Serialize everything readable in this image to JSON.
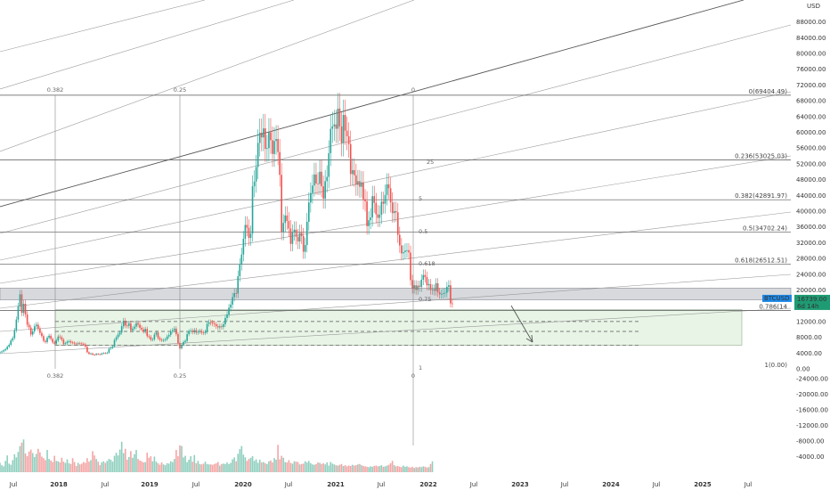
{
  "chart_data": {
    "type": "candlestick",
    "symbol_tag": "BTCUSD",
    "last_price": "16739.00",
    "countdown": "6d 14h",
    "currency": "USD",
    "price_axis_labels": [
      "88000.00",
      "84000.00",
      "80000.00",
      "76000.00",
      "72000.00",
      "68000.00",
      "64000.00",
      "60000.00",
      "56000.00",
      "52000.00",
      "48000.00",
      "44000.00",
      "40000.00",
      "36000.00",
      "32000.00",
      "28000.00",
      "24000.00",
      "20000.00",
      "12000.00",
      "8000.00",
      "4000.00",
      "0.00"
    ],
    "volume_axis_labels": [
      "-4000.00",
      "-8000.00",
      "-12000.00",
      "-16000.00",
      "-20000.00",
      "-24000.00"
    ],
    "time_axis_labels": [
      "Jul",
      "2018",
      "Jul",
      "2019",
      "Jul",
      "2020",
      "Jul",
      "2021",
      "Jul",
      "2022",
      "Jul",
      "2023",
      "Jul",
      "2024",
      "Jul",
      "2025",
      "Jul"
    ],
    "ylim": [
      0,
      92000
    ],
    "fib_retracement_levels": [
      {
        "ratio": "0",
        "price": 69404.49,
        "label": "0(69404.49)"
      },
      {
        "ratio": "0.236",
        "price": 53025.03,
        "label": "0.236(53025.03)"
      },
      {
        "ratio": "0.382",
        "price": 42891.97,
        "label": "0.382(42891.97)"
      },
      {
        "ratio": "0.5",
        "price": 34702.24,
        "label": "0.5(34702.24)"
      },
      {
        "ratio": "0.618",
        "price": 26512.51,
        "label": "0.618(26512.51)"
      },
      {
        "ratio": "0.786",
        "price": 14800,
        "label": "0.786(14"
      },
      {
        "ratio": "1",
        "price": 0,
        "label": "1(0.00)"
      }
    ],
    "vertical_fib_labels_top": [
      "0.382",
      "0.25",
      "0"
    ],
    "vertical_fib_labels_bottom": [
      "0.382",
      "0.25",
      "0"
    ],
    "fan_labels": [
      "0.5",
      "0.618",
      "0.75",
      "1",
      "25",
      "5"
    ],
    "support_zone": [
      17500,
      20500
    ],
    "target_box": [
      6000,
      15000
    ],
    "dashed_levels": [
      12000,
      9500,
      6000
    ],
    "weekly_closes": [
      4200,
      4400,
      4700,
      5000,
      5600,
      6100,
      7200,
      7800,
      9800,
      12500,
      15800,
      18900,
      14200,
      16500,
      13800,
      11200,
      10500,
      8700,
      9500,
      10800,
      11200,
      10200,
      9100,
      8300,
      7100,
      6800,
      7900,
      8400,
      7600,
      6700,
      6400,
      7200,
      8200,
      8000,
      7400,
      6300,
      6500,
      6900,
      7000,
      6700,
      6600,
      6400,
      6300,
      6500,
      6450,
      6350,
      6200,
      5600,
      4200,
      3800,
      3900,
      3600,
      3550,
      3800,
      3700,
      3650,
      3900,
      4000,
      3950,
      4100,
      5100,
      5300,
      5700,
      7300,
      8000,
      8700,
      9200,
      10800,
      12200,
      11000,
      10900,
      11500,
      9800,
      10200,
      10700,
      11600,
      11200,
      10400,
      10000,
      9500,
      10100,
      8300,
      8100,
      7400,
      7500,
      8700,
      9200,
      7800,
      7400,
      7200,
      7300,
      7500,
      8200,
      8600,
      9500,
      9800,
      10200,
      8800,
      6500,
      5200,
      6100,
      6800,
      7100,
      8800,
      9500,
      9700,
      9300,
      9800,
      9200,
      9400,
      9600,
      9200,
      9100,
      9400,
      11400,
      11800,
      11700,
      11500,
      11300,
      10800,
      10500,
      10800,
      10600,
      11300,
      12900,
      13800,
      15500,
      16300,
      18200,
      19200,
      19100,
      23500,
      26500,
      29000,
      33000,
      36500,
      35800,
      33200,
      34300,
      46300,
      47500,
      51200,
      57300,
      59900,
      58700,
      61000,
      55800,
      56000,
      60000,
      58000,
      54500,
      57800,
      58300,
      55000,
      49200,
      34700,
      37000,
      38900,
      37500,
      35600,
      31700,
      34600,
      35300,
      33500,
      32300,
      34500,
      33700,
      29700,
      31400,
      37300,
      42200,
      44600,
      46500,
      49300,
      47000,
      46900,
      50000,
      46300,
      43200,
      47600,
      48700,
      54700,
      60900,
      61500,
      62000,
      60900,
      66000,
      61500,
      57300,
      64400,
      60400,
      59000,
      57000,
      49400,
      50400,
      49100,
      46700,
      47600,
      46200,
      47300,
      43000,
      42500,
      36200,
      37700,
      38400,
      43800,
      42100,
      39200,
      38300,
      39100,
      42400,
      41900,
      44100,
      46800,
      45800,
      42200,
      39500,
      40000,
      39700,
      34000,
      31300,
      29300,
      29600,
      30000,
      30100,
      29500,
      22500,
      20300,
      21200,
      20000,
      21100,
      20800,
      22600,
      23800,
      23300,
      21200,
      21500,
      20000,
      20200,
      19800,
      21700,
      19400,
      18900,
      19000,
      19200,
      19300,
      20800,
      21200,
      16600,
      16500
    ],
    "volume_bars": [
      2400,
      1800,
      1500,
      2900,
      4300,
      2200,
      1900,
      3100,
      4600,
      3800,
      5200,
      6700,
      7600,
      8400,
      4800,
      4100,
      5300,
      5800,
      4900,
      3900,
      4700,
      6000,
      5100,
      4000,
      3600,
      3100,
      5700,
      3400,
      3000,
      2600,
      4200,
      2900,
      2800,
      2500,
      3700,
      2700,
      2400,
      3300,
      2300,
      2100,
      3600,
      2600,
      1600,
      2400,
      2000,
      2200,
      2600,
      2400,
      3600,
      2700,
      3100,
      5400,
      4300,
      3400,
      2700,
      1800,
      2500,
      2800,
      2400,
      2900,
      3400,
      3200,
      2700,
      4200,
      5000,
      4300,
      5800,
      7800,
      4900,
      6000,
      3200,
      3900,
      5400,
      3700,
      4600,
      5700,
      3400,
      3000,
      2800,
      2500,
      2600,
      5000,
      3700,
      4100,
      2800,
      4000,
      2700,
      2300,
      1900,
      2500,
      2000,
      1800,
      2300,
      2200,
      2800,
      2600,
      3400,
      5700,
      4100,
      6900,
      6700,
      3800,
      4200,
      2600,
      3200,
      4100,
      2700,
      4400,
      2300,
      2900,
      2100,
      2000,
      2200,
      2700,
      2100,
      2000,
      2000,
      1900,
      2100,
      2300,
      2600,
      1700,
      2100,
      2200,
      2100,
      2500,
      2100,
      2400,
      3300,
      3800,
      2800,
      4700,
      5900,
      6700,
      4500,
      3800,
      2900,
      3400,
      3700,
      4100,
      2900,
      3300,
      2400,
      3200,
      2500,
      2600,
      2300,
      2100,
      2800,
      3000,
      2500,
      3600,
      3200,
      7000,
      3300,
      4200,
      3700,
      2600,
      2500,
      3100,
      2400,
      2200,
      2800,
      2700,
      2600,
      2000,
      2100,
      2200,
      2800,
      2500,
      2900,
      2300,
      2000,
      1900,
      2100,
      2500,
      2400,
      2100,
      2300,
      2000,
      2500,
      1700,
      2600,
      2200,
      2000,
      1800,
      1700,
      1900,
      2100,
      1600,
      1800,
      1500,
      1700,
      1600,
      1900,
      1700,
      1800,
      2000,
      2100,
      1800,
      1600,
      1500,
      1400,
      1300,
      1500,
      1400,
      1600,
      1700,
      1500,
      1600,
      1800,
      1400,
      1500,
      1700,
      1900,
      2300,
      2900,
      1800,
      1500,
      1600,
      1400,
      1300,
      1700,
      1400,
      1500,
      1300,
      1200,
      1400,
      1100,
      1300,
      1200,
      1400,
      1300,
      1500,
      1400,
      1200,
      1300,
      2100,
      2800
    ]
  }
}
